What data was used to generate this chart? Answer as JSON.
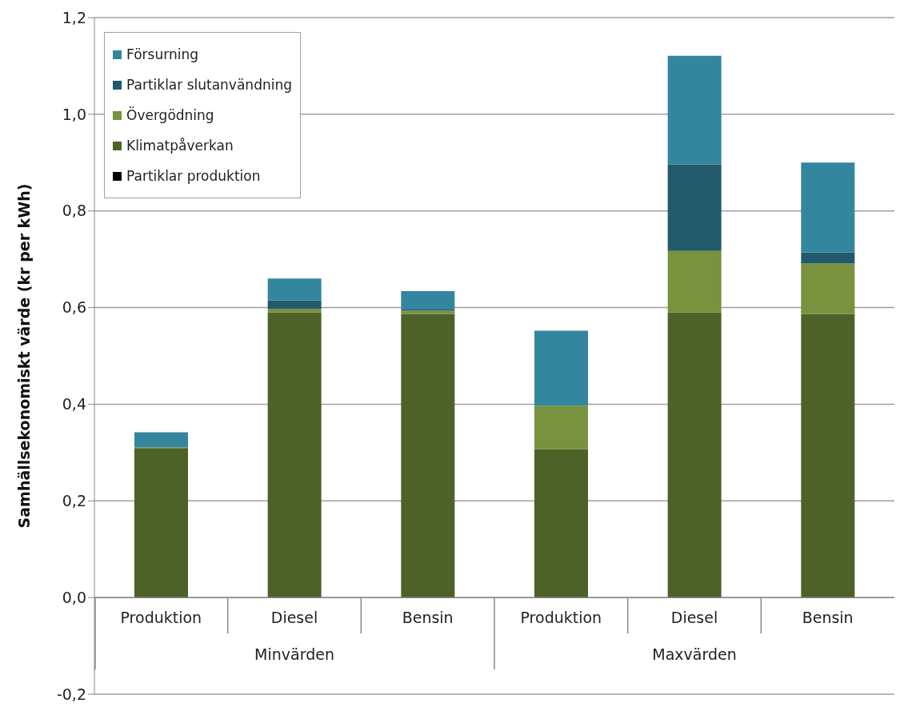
{
  "chart_data": {
    "type": "bar",
    "stacked": true,
    "ylabel": "Samhällsekonomiskt värde (kr per kWh)",
    "categories": [
      "Produktion",
      "Diesel",
      "Bensin",
      "Produktion",
      "Diesel",
      "Bensin"
    ],
    "annotations": [
      "Minvärden",
      "Maxvärden"
    ],
    "series": [
      {
        "name": "Partiklar produktion",
        "color": "#000000",
        "values": [
          0,
          0,
          0,
          0,
          0,
          0
        ]
      },
      {
        "name": "Klimatpåverkan",
        "color": "#4e6128",
        "values": [
          0.308,
          0.59,
          0.587,
          0.307,
          0.59,
          0.587
        ]
      },
      {
        "name": "Övergödning",
        "color": "#78923d",
        "values": [
          0.003,
          0.007,
          0.007,
          0.09,
          0.127,
          0.104
        ]
      },
      {
        "name": "Partiklar slutanvändning",
        "color": "#225a69",
        "values": [
          0,
          0.018,
          0.002,
          0,
          0.179,
          0.023
        ]
      },
      {
        "name": "Försurning",
        "color": "#33869e",
        "values": [
          0.031,
          0.045,
          0.038,
          0.155,
          0.225,
          0.186
        ]
      }
    ],
    "ylim": [
      -0.2,
      1.2
    ],
    "yticks": [
      {
        "value": -0.2,
        "label": "-0,2"
      },
      {
        "value": 0,
        "label": "0,0"
      },
      {
        "value": 0.2,
        "label": "0,2"
      },
      {
        "value": 0.4,
        "label": "0,4"
      },
      {
        "value": 0.6,
        "label": "0,6"
      },
      {
        "value": 0.8,
        "label": "0,8"
      },
      {
        "value": 1.0,
        "label": "1,0"
      },
      {
        "value": 1.2,
        "label": "1,2"
      }
    ],
    "grid": "y",
    "legend": "top left"
  }
}
